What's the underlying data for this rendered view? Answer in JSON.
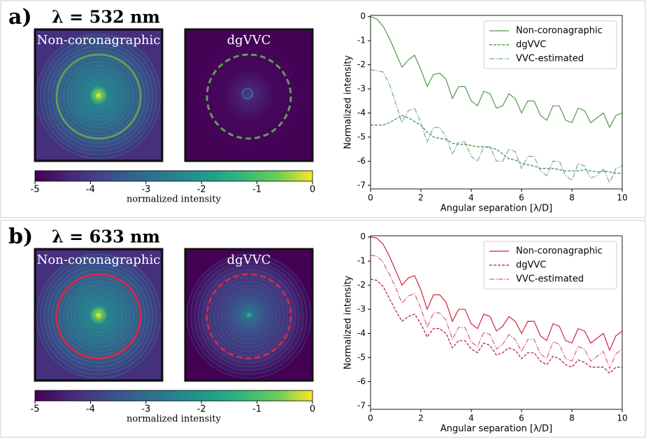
{
  "panels": [
    {
      "label": "a)",
      "title": "λ = 532 nm",
      "image_titles": [
        "Non-coronagraphic",
        "dgVVC"
      ],
      "colorbar": {
        "lim": [
          -5,
          0
        ],
        "ticks": [
          -5,
          -4,
          -3,
          -2,
          -1,
          0
        ],
        "label": "normalized intensity"
      }
    },
    {
      "label": "b)",
      "title": "λ = 633 nm",
      "image_titles": [
        "Non-coronagraphic",
        "dgVVC"
      ],
      "colorbar": {
        "lim": [
          -5,
          0
        ],
        "ticks": [
          -5,
          -4,
          -3,
          -2,
          -1,
          0
        ],
        "label": "normalized intensity"
      }
    }
  ],
  "chart_data": [
    {
      "type": "line",
      "xlabel": "Angular separation [λ/D]",
      "ylabel": "Normalized intensity",
      "xlim": [
        0,
        10
      ],
      "ylim": [
        -7.15,
        0.05
      ],
      "xticks": [
        0,
        2,
        4,
        6,
        8,
        10
      ],
      "yticks": [
        0,
        -1,
        -2,
        -3,
        -4,
        -5,
        -6,
        -7
      ],
      "legend": "upper right",
      "x": [
        0,
        0.25,
        0.5,
        0.75,
        1,
        1.25,
        1.5,
        1.75,
        2,
        2.25,
        2.5,
        2.75,
        3,
        3.25,
        3.5,
        3.75,
        4,
        4.25,
        4.5,
        4.75,
        5,
        5.25,
        5.5,
        5.75,
        6,
        6.25,
        6.5,
        6.75,
        7,
        7.25,
        7.5,
        7.75,
        8,
        8.25,
        8.5,
        8.75,
        9,
        9.25,
        9.5,
        9.75,
        10
      ],
      "series": [
        {
          "name": "Non-coronagraphic",
          "color": "#4f9a47",
          "style": "solid",
          "values": [
            0,
            -0.1,
            -0.4,
            -0.9,
            -1.5,
            -2.1,
            -1.8,
            -1.6,
            -2.2,
            -2.9,
            -2.4,
            -2.35,
            -2.6,
            -3.4,
            -2.9,
            -2.9,
            -3.5,
            -3.7,
            -3.1,
            -3.2,
            -3.8,
            -3.7,
            -3.2,
            -3.4,
            -4.0,
            -3.5,
            -3.5,
            -4.1,
            -4.3,
            -3.7,
            -3.7,
            -4.3,
            -4.4,
            -3.8,
            -3.9,
            -4.4,
            -4.2,
            -4.0,
            -4.6,
            -4.1,
            -4.0
          ]
        },
        {
          "name": "dgVVC",
          "color": "#3d8a3a",
          "style": "dashed",
          "values": [
            -4.5,
            -4.5,
            -4.5,
            -4.4,
            -4.25,
            -4.1,
            -4.2,
            -4.35,
            -4.5,
            -4.8,
            -5.0,
            -5.05,
            -5.1,
            -5.25,
            -5.3,
            -5.3,
            -5.35,
            -5.4,
            -5.4,
            -5.45,
            -5.5,
            -5.7,
            -5.9,
            -5.95,
            -6.1,
            -6.15,
            -6.2,
            -6.3,
            -6.3,
            -6.3,
            -6.35,
            -6.4,
            -6.4,
            -6.4,
            -6.35,
            -6.4,
            -6.45,
            -6.4,
            -6.45,
            -6.5,
            -6.5
          ]
        },
        {
          "name": "VVC-estimated",
          "color": "#6aa890",
          "style": "dashdot",
          "values": [
            -2.2,
            -2.25,
            -2.3,
            -2.8,
            -3.6,
            -4.4,
            -3.9,
            -3.8,
            -4.4,
            -5.2,
            -4.6,
            -4.6,
            -5.0,
            -5.7,
            -5.2,
            -5.2,
            -5.8,
            -6.0,
            -5.4,
            -5.4,
            -6.0,
            -6.0,
            -5.5,
            -5.6,
            -6.3,
            -5.8,
            -5.8,
            -6.4,
            -6.6,
            -6.0,
            -6.0,
            -6.6,
            -6.8,
            -6.1,
            -6.2,
            -6.7,
            -6.6,
            -6.3,
            -6.9,
            -6.3,
            -6.2
          ]
        }
      ]
    },
    {
      "type": "line",
      "xlabel": "Angular separation [λ/D]",
      "ylabel": "Normalized intensity",
      "xlim": [
        0,
        10
      ],
      "ylim": [
        -7.15,
        0.05
      ],
      "xticks": [
        0,
        2,
        4,
        6,
        8,
        10
      ],
      "yticks": [
        0,
        -1,
        -2,
        -3,
        -4,
        -5,
        -6,
        -7
      ],
      "legend": "upper right",
      "x": [
        0,
        0.25,
        0.5,
        0.75,
        1,
        1.25,
        1.5,
        1.75,
        2,
        2.25,
        2.5,
        2.75,
        3,
        3.25,
        3.5,
        3.75,
        4,
        4.25,
        4.5,
        4.75,
        5,
        5.25,
        5.5,
        5.75,
        6,
        6.25,
        6.5,
        6.75,
        7,
        7.25,
        7.5,
        7.75,
        8,
        8.25,
        8.5,
        8.75,
        9,
        9.25,
        9.5,
        9.75,
        10
      ],
      "series": [
        {
          "name": "Non-coronagraphic",
          "color": "#d4213f",
          "style": "solid",
          "values": [
            0,
            -0.05,
            -0.3,
            -0.8,
            -1.4,
            -2.0,
            -1.7,
            -1.6,
            -2.2,
            -3.0,
            -2.4,
            -2.4,
            -2.7,
            -3.5,
            -3.0,
            -3.0,
            -3.6,
            -3.8,
            -3.2,
            -3.3,
            -3.9,
            -3.7,
            -3.3,
            -3.5,
            -4.0,
            -3.5,
            -3.5,
            -4.1,
            -4.3,
            -3.6,
            -3.7,
            -4.3,
            -4.4,
            -3.8,
            -3.9,
            -4.4,
            -4.2,
            -4.0,
            -4.7,
            -4.1,
            -3.9
          ]
        },
        {
          "name": "dgVVC",
          "color": "#b5173a",
          "style": "dashed",
          "values": [
            -1.75,
            -1.8,
            -2.05,
            -2.55,
            -3.05,
            -3.5,
            -3.3,
            -3.2,
            -3.6,
            -4.15,
            -3.8,
            -3.8,
            -4.0,
            -4.6,
            -4.3,
            -4.3,
            -4.65,
            -4.8,
            -4.4,
            -4.5,
            -4.9,
            -4.8,
            -4.6,
            -4.7,
            -5.05,
            -4.8,
            -4.8,
            -5.15,
            -5.3,
            -4.95,
            -5.05,
            -5.3,
            -5.4,
            -5.1,
            -5.2,
            -5.4,
            -5.4,
            -5.4,
            -5.65,
            -5.4,
            -5.4
          ]
        },
        {
          "name": "VVC-estimated",
          "color": "#d95b78",
          "style": "dashdot",
          "values": [
            -0.75,
            -0.8,
            -1.05,
            -1.55,
            -2.1,
            -2.75,
            -2.45,
            -2.35,
            -2.95,
            -3.75,
            -3.15,
            -3.15,
            -3.45,
            -4.25,
            -3.75,
            -3.75,
            -4.35,
            -4.55,
            -3.95,
            -4.05,
            -4.65,
            -4.45,
            -4.05,
            -4.25,
            -4.75,
            -4.25,
            -4.25,
            -4.85,
            -5.05,
            -4.35,
            -4.45,
            -5.05,
            -5.15,
            -4.55,
            -4.65,
            -5.15,
            -4.95,
            -4.75,
            -5.45,
            -4.85,
            -4.65
          ]
        }
      ]
    }
  ]
}
